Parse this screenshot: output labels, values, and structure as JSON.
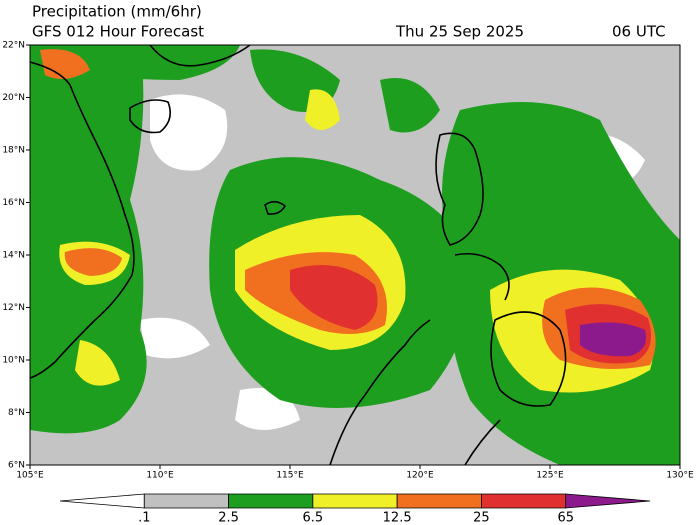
{
  "header": {
    "title": "Precipitation (mm/6hr)",
    "subtitle": "GFS 012 Hour Forecast",
    "date": "Thu 25 Sep 2025",
    "time": "06 UTC"
  },
  "lat_labels": [
    "6°N",
    "8°N",
    "10°N",
    "12°N",
    "14°N",
    "16°N",
    "18°N",
    "20°N",
    "22°N"
  ],
  "lon_labels": [
    "105°E",
    "110°E",
    "115°E",
    "120°E",
    "125°E",
    "130°E"
  ],
  "colorbar": {
    "labels": [
      ".1",
      "2.5",
      "6.5",
      "12.5",
      "25",
      "65"
    ],
    "colors": [
      "#ffffff",
      "#c0c0c0",
      "#1e9e1e",
      "#f0f028",
      "#f07020",
      "#e03030",
      "#8c1a8c"
    ]
  }
}
